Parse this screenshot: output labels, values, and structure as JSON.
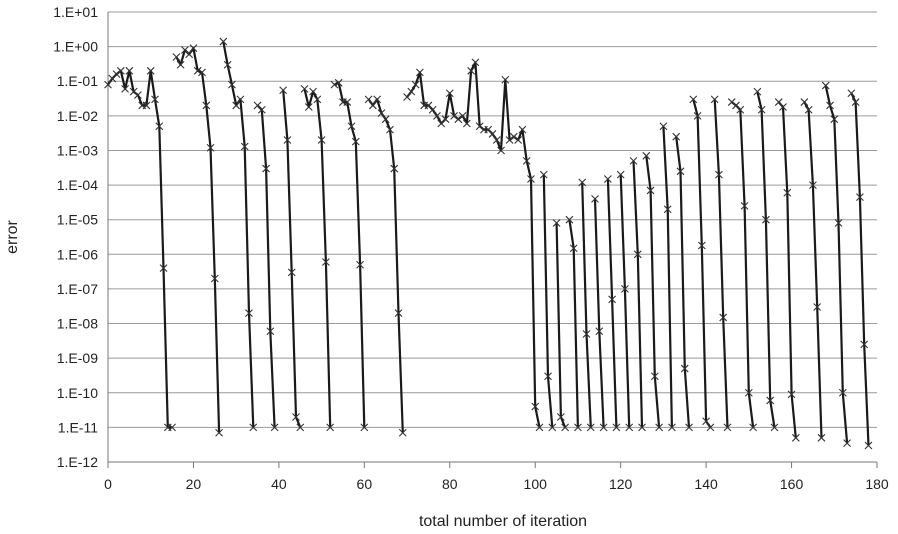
{
  "chart_data": {
    "type": "line",
    "title": "",
    "xlabel": "total number of iteration",
    "ylabel": "error",
    "xlim": [
      0,
      180
    ],
    "ylim": [
      1e-12,
      10
    ],
    "y_scale": "log",
    "grid": "horizontal",
    "legend": "none",
    "x_ticks": [
      "0",
      "20",
      "40",
      "60",
      "80",
      "100",
      "120",
      "140",
      "160",
      "180"
    ],
    "y_ticks": [
      "1.E-12",
      "1.E-11",
      "1.E-10",
      "1.E-09",
      "1.E-08",
      "1.E-07",
      "1.E-06",
      "1.E-05",
      "1.E-04",
      "1.E-03",
      "1.E-02",
      "1.E-01",
      "1.E+00",
      "1.E+01"
    ],
    "line_color": "#1a1a1a",
    "series": [
      {
        "values": [
          [
            0,
            0.08
          ],
          [
            1,
            0.12
          ],
          [
            2,
            0.16
          ],
          [
            3,
            0.2
          ],
          [
            4,
            0.06
          ],
          [
            5,
            0.2
          ],
          [
            6,
            0.05
          ],
          [
            7,
            0.04
          ],
          [
            8,
            0.02
          ],
          [
            9,
            0.02
          ],
          [
            10,
            0.2
          ],
          [
            11,
            0.03
          ],
          [
            12,
            0.005
          ],
          [
            13,
            4e-07
          ],
          [
            14,
            1e-11
          ],
          [
            15,
            1e-11
          ]
        ]
      },
      {
        "values": [
          [
            16,
            0.5
          ],
          [
            17,
            0.3
          ],
          [
            18,
            0.8
          ],
          [
            19,
            0.6
          ],
          [
            20,
            0.9
          ],
          [
            21,
            0.2
          ],
          [
            22,
            0.18
          ],
          [
            23,
            0.02
          ],
          [
            24,
            0.0012
          ],
          [
            25,
            2e-07
          ],
          [
            26,
            7e-12
          ]
        ]
      },
      {
        "values": [
          [
            27,
            1.4
          ],
          [
            28,
            0.3
          ],
          [
            29,
            0.08
          ],
          [
            30,
            0.02
          ],
          [
            31,
            0.03
          ],
          [
            32,
            0.0013
          ],
          [
            33,
            2e-08
          ],
          [
            34,
            1e-11
          ]
        ]
      },
      {
        "values": [
          [
            35,
            0.02
          ],
          [
            36,
            0.015
          ],
          [
            37,
            0.0003
          ],
          [
            38,
            6e-09
          ],
          [
            39,
            1e-11
          ]
        ]
      },
      {
        "values": [
          [
            41,
            0.055
          ],
          [
            42,
            0.002
          ],
          [
            43,
            3e-07
          ],
          [
            44,
            2e-11
          ],
          [
            45,
            1e-11
          ]
        ]
      },
      {
        "values": [
          [
            46,
            0.06
          ],
          [
            47,
            0.018
          ],
          [
            48,
            0.05
          ],
          [
            49,
            0.03
          ],
          [
            50,
            0.002
          ],
          [
            51,
            6e-07
          ],
          [
            52,
            1e-11
          ]
        ]
      },
      {
        "values": [
          [
            53,
            0.08
          ],
          [
            54,
            0.09
          ],
          [
            55,
            0.025
          ],
          [
            56,
            0.025
          ],
          [
            57,
            0.005
          ],
          [
            58,
            0.0018
          ],
          [
            59,
            5e-07
          ],
          [
            60,
            1e-11
          ]
        ]
      },
      {
        "values": [
          [
            61,
            0.03
          ],
          [
            62,
            0.02
          ],
          [
            63,
            0.03
          ],
          [
            64,
            0.012
          ],
          [
            65,
            0.008
          ],
          [
            66,
            0.004
          ],
          [
            67,
            0.0003
          ],
          [
            68,
            2e-08
          ],
          [
            69,
            7e-12
          ]
        ]
      },
      {
        "values": [
          [
            70,
            0.035
          ],
          [
            71,
            0.05
          ],
          [
            72,
            0.08
          ],
          [
            73,
            0.18
          ],
          [
            74,
            0.02
          ],
          [
            75,
            0.02
          ],
          [
            76,
            0.015
          ],
          [
            77,
            0.01
          ],
          [
            78,
            0.006
          ],
          [
            79,
            0.008
          ],
          [
            80,
            0.045
          ],
          [
            81,
            0.01
          ],
          [
            82,
            0.008
          ],
          [
            83,
            0.01
          ],
          [
            84,
            0.006
          ],
          [
            85,
            0.2
          ],
          [
            86,
            0.35
          ],
          [
            87,
            0.005
          ],
          [
            88,
            0.004
          ],
          [
            89,
            0.004
          ],
          [
            90,
            0.003
          ],
          [
            91,
            0.002
          ],
          [
            92,
            0.001
          ],
          [
            93,
            0.11
          ],
          [
            94,
            0.002
          ],
          [
            95,
            0.0025
          ],
          [
            96,
            0.002
          ],
          [
            97,
            0.004
          ],
          [
            98,
            0.0005
          ],
          [
            99,
            0.00015
          ],
          [
            100,
            4e-11
          ],
          [
            101,
            1e-11
          ]
        ]
      },
      {
        "values": [
          [
            102,
            0.0002
          ],
          [
            103,
            3e-10
          ],
          [
            104,
            1e-11
          ]
        ]
      },
      {
        "values": [
          [
            105,
            8e-06
          ],
          [
            106,
            2e-11
          ],
          [
            107,
            1e-11
          ]
        ]
      },
      {
        "values": [
          [
            108,
            1e-05
          ],
          [
            109,
            1.5e-06
          ],
          [
            110,
            1e-11
          ]
        ]
      },
      {
        "values": [
          [
            111,
            0.00012
          ],
          [
            112,
            5e-09
          ],
          [
            113,
            1e-11
          ]
        ]
      },
      {
        "values": [
          [
            114,
            4e-05
          ],
          [
            115,
            6e-09
          ],
          [
            116,
            1e-11
          ]
        ]
      },
      {
        "values": [
          [
            117,
            0.00015
          ],
          [
            118,
            5e-08
          ],
          [
            119,
            1e-11
          ]
        ]
      },
      {
        "values": [
          [
            120,
            0.0002
          ],
          [
            121,
            1e-07
          ],
          [
            122,
            1e-11
          ]
        ]
      },
      {
        "values": [
          [
            123,
            0.0005
          ],
          [
            124,
            1e-06
          ],
          [
            125,
            1e-11
          ]
        ]
      },
      {
        "values": [
          [
            126,
            0.0007
          ],
          [
            127,
            7e-05
          ],
          [
            128,
            3e-10
          ],
          [
            129,
            1e-11
          ]
        ]
      },
      {
        "values": [
          [
            130,
            0.005
          ],
          [
            131,
            2e-05
          ],
          [
            132,
            1e-11
          ]
        ]
      },
      {
        "values": [
          [
            133,
            0.0025
          ],
          [
            134,
            0.00025
          ],
          [
            135,
            5e-10
          ],
          [
            136,
            1e-11
          ]
        ]
      },
      {
        "values": [
          [
            137,
            0.03
          ],
          [
            138,
            0.01
          ],
          [
            139,
            1.8e-06
          ],
          [
            140,
            1.5e-11
          ],
          [
            141,
            1e-11
          ]
        ]
      },
      {
        "values": [
          [
            142,
            0.03
          ],
          [
            143,
            0.0002
          ],
          [
            144,
            1.5e-08
          ],
          [
            145,
            1e-11
          ]
        ]
      },
      {
        "values": [
          [
            146,
            0.025
          ],
          [
            147,
            0.02
          ],
          [
            148,
            0.015
          ],
          [
            149,
            2.5e-05
          ],
          [
            150,
            1e-10
          ],
          [
            151,
            1e-11
          ]
        ]
      },
      {
        "values": [
          [
            152,
            0.05
          ],
          [
            153,
            0.015
          ],
          [
            154,
            1e-05
          ],
          [
            155,
            6e-11
          ],
          [
            156,
            1e-11
          ]
        ]
      },
      {
        "values": [
          [
            157,
            0.025
          ],
          [
            158,
            0.018
          ],
          [
            159,
            6e-05
          ],
          [
            160,
            9e-11
          ],
          [
            161,
            5e-12
          ]
        ]
      },
      {
        "values": [
          [
            163,
            0.025
          ],
          [
            164,
            0.015
          ],
          [
            165,
            0.0001
          ],
          [
            166,
            3e-08
          ],
          [
            167,
            5e-12
          ]
        ]
      },
      {
        "values": [
          [
            168,
            0.075
          ],
          [
            169,
            0.02
          ],
          [
            170,
            0.008
          ],
          [
            171,
            8e-06
          ],
          [
            172,
            1e-10
          ],
          [
            173,
            3.5e-12
          ]
        ]
      },
      {
        "values": [
          [
            174,
            0.045
          ],
          [
            175,
            0.025
          ],
          [
            176,
            4.5e-05
          ],
          [
            177,
            2.5e-09
          ],
          [
            178,
            3e-12
          ]
        ]
      }
    ]
  }
}
